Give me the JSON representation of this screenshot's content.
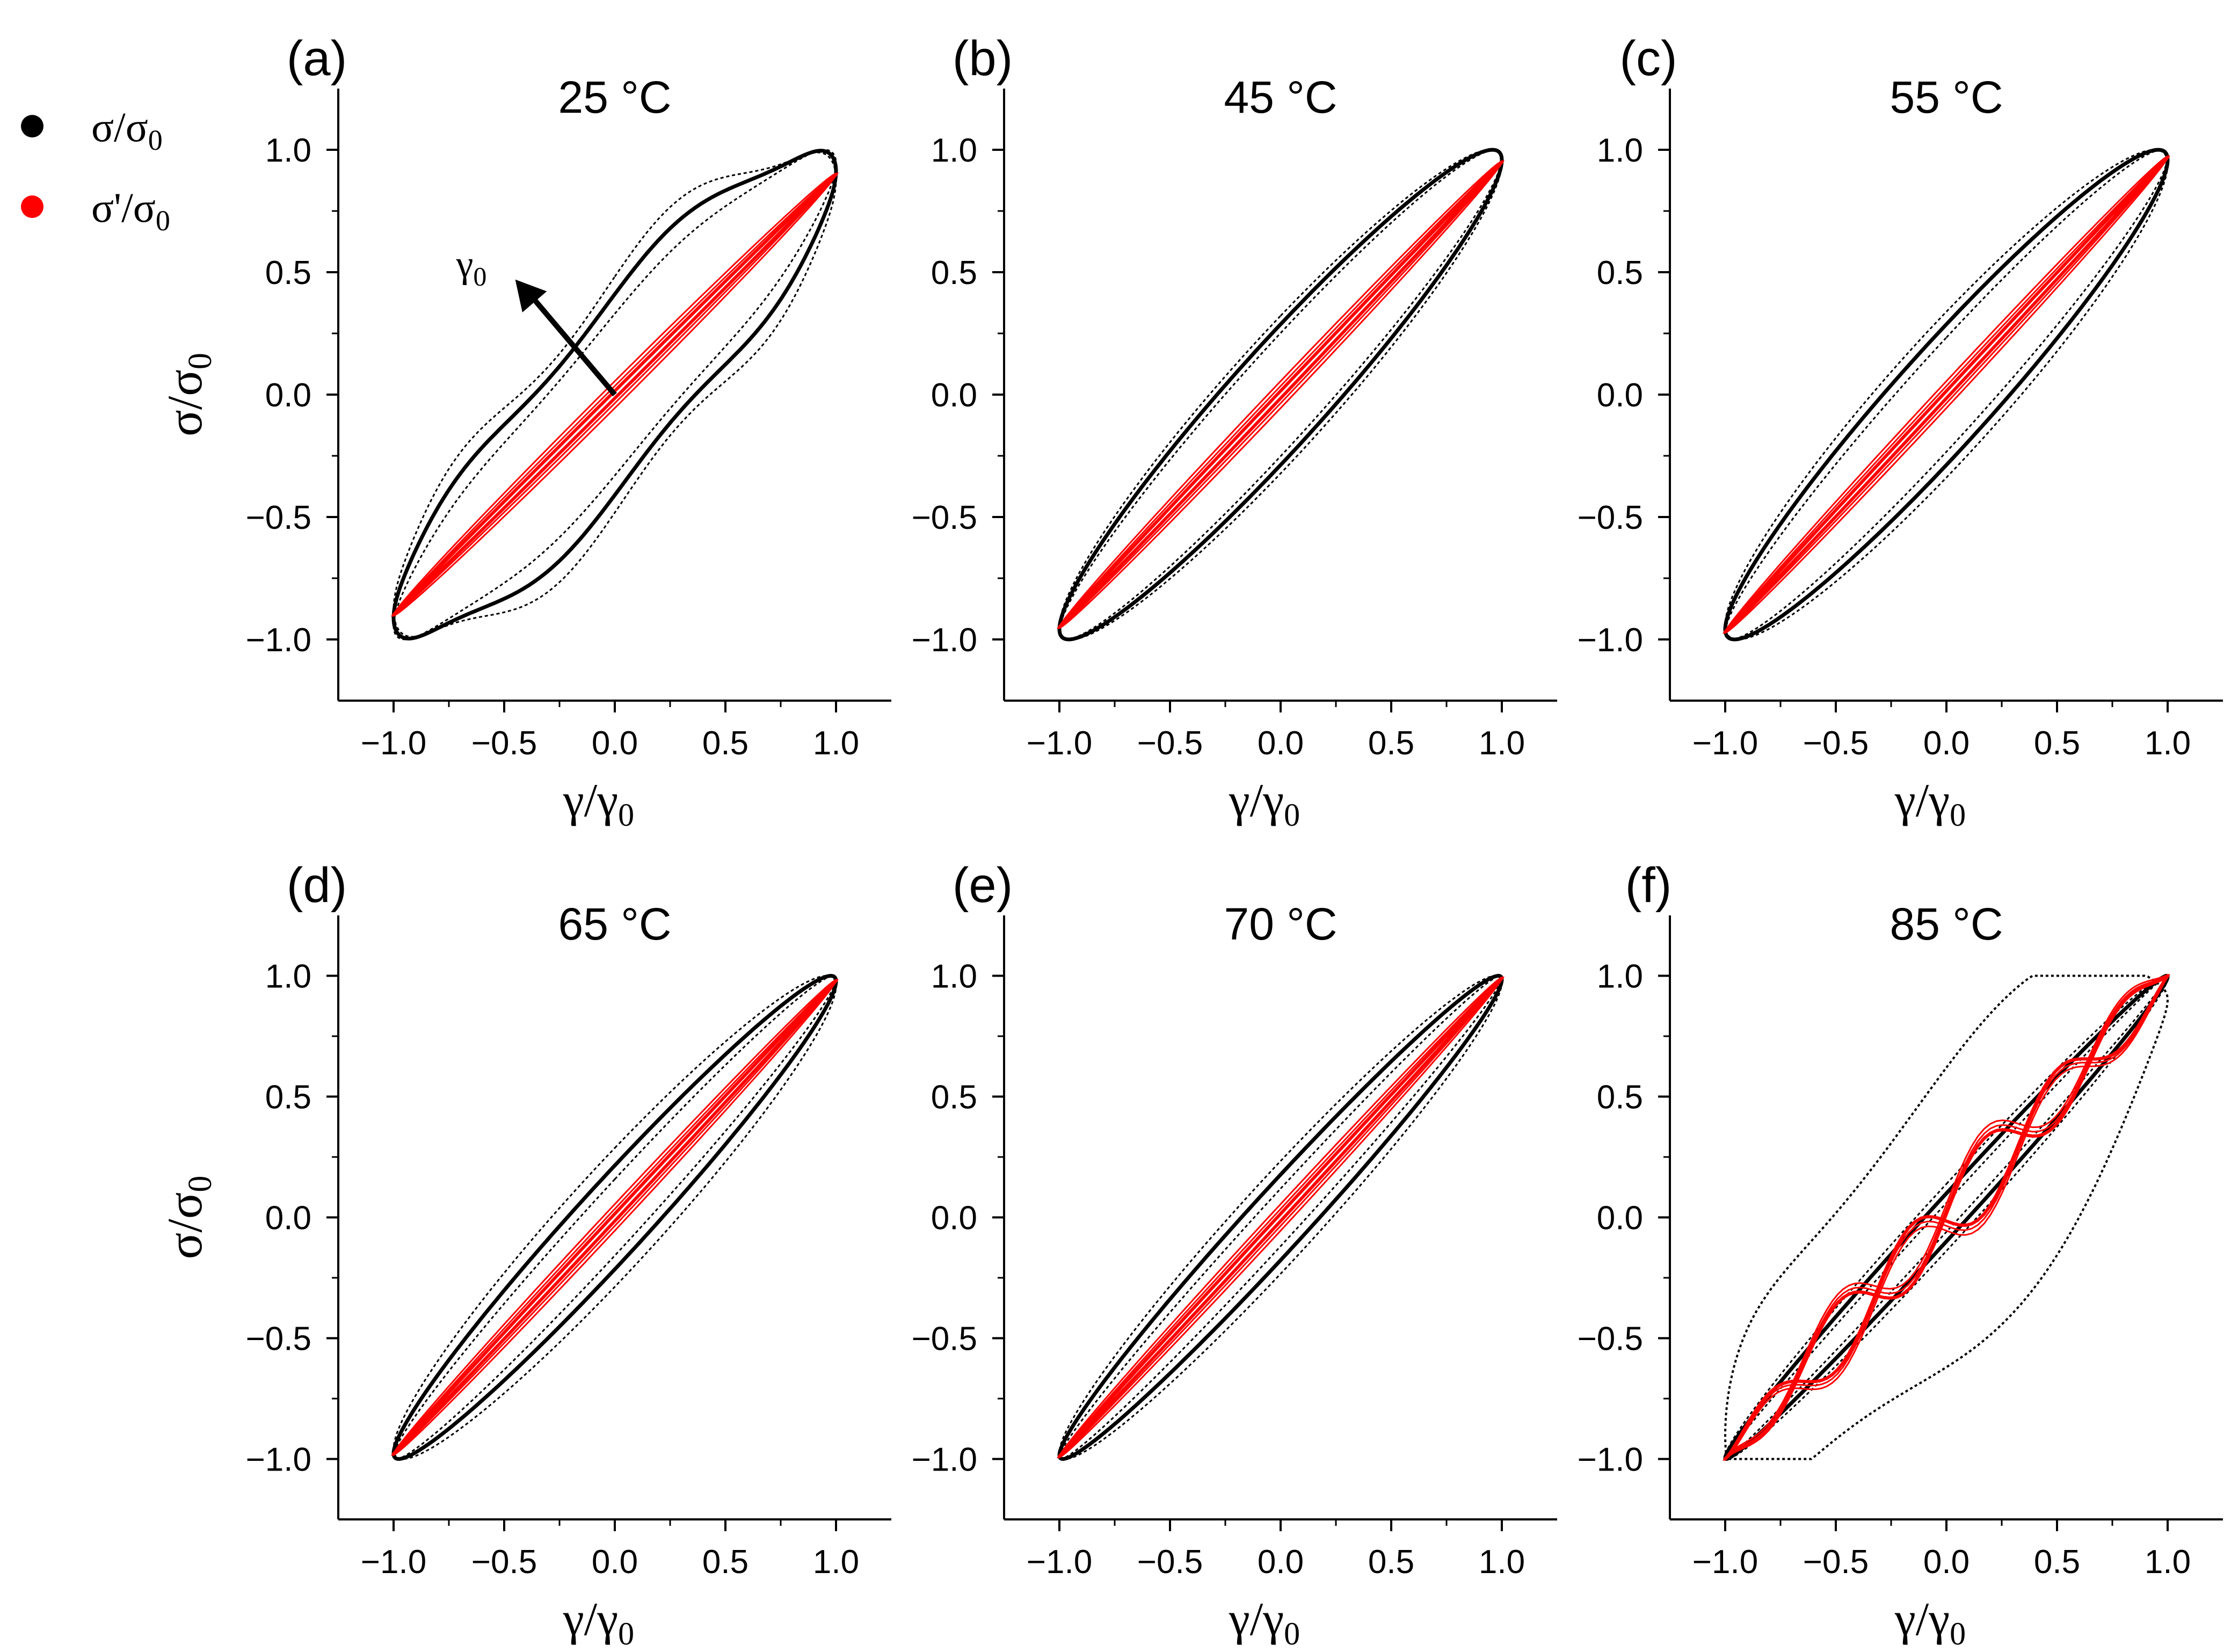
{
  "legend": {
    "items": [
      {
        "symbol_color": "#000000",
        "label_main": "σ/σ",
        "label_sub": "0"
      },
      {
        "symbol_color": "#ff0000",
        "label_main": "σ'/σ",
        "label_sub": "0"
      }
    ],
    "placement": "top-left"
  },
  "colors": {
    "total_stress": "#000000",
    "elastic_stress": "#ff0000"
  },
  "axis_labels": {
    "x_main": "γ/γ",
    "x_sub": "0",
    "y_main": "σ/σ",
    "y_sub": "0"
  },
  "annotation": {
    "arrow_label_main": "γ",
    "arrow_label_sub": "0",
    "arrow_from": [
      0.0,
      0.0
    ],
    "arrow_to": [
      -0.45,
      0.47
    ]
  },
  "chart_data": [
    {
      "type": "line",
      "panel": "(a)",
      "title": "25 °C",
      "xlabel": "γ/γ0",
      "ylabel": "σ/σ0",
      "xlim": [
        -1.25,
        1.25
      ],
      "ylim": [
        -1.25,
        1.25
      ],
      "xticks": [
        "−1.0",
        "−0.5",
        "0.0",
        "0.5",
        "1.0"
      ],
      "yticks": [
        "−1.0",
        "−0.5",
        "0.0",
        "0.5",
        "1.0"
      ],
      "legend": [
        "σ/σ0",
        "σ'/σ0"
      ],
      "series": [
        {
          "name": "σ/σ0",
          "loop_widths": [
            0.35,
            0.45,
            0.55
          ]
        },
        {
          "name": "σ'/σ0",
          "slope": 0.9
        }
      ]
    },
    {
      "type": "line",
      "panel": "(b)",
      "title": "45 °C",
      "xlabel": "γ/γ0",
      "ylabel": "σ/σ0",
      "xlim": [
        -1.25,
        1.25
      ],
      "ylim": [
        -1.25,
        1.25
      ],
      "xticks": [
        "−1.0",
        "−0.5",
        "0.0",
        "0.5",
        "1.0"
      ],
      "yticks": [
        "−1.0",
        "−0.5",
        "0.0",
        "0.5",
        "1.0"
      ],
      "series": [
        {
          "name": "σ/σ0",
          "loop_widths": [
            0.26,
            0.3,
            0.34
          ]
        },
        {
          "name": "σ'/σ0",
          "slope": 0.95
        }
      ]
    },
    {
      "type": "line",
      "panel": "(c)",
      "title": "55 °C",
      "xlabel": "γ/γ0",
      "ylabel": "σ/σ0",
      "xlim": [
        -1.25,
        1.25
      ],
      "ylim": [
        -1.25,
        1.25
      ],
      "xticks": [
        "−1.0",
        "−0.5",
        "0.0",
        "0.5",
        "1.0"
      ],
      "yticks": [
        "−1.0",
        "−0.5",
        "0.0",
        "0.5",
        "1.0"
      ],
      "series": [
        {
          "name": "σ/σ0",
          "loop_widths": [
            0.24,
            0.3,
            0.36
          ]
        },
        {
          "name": "σ'/σ0",
          "slope": 0.97
        }
      ]
    },
    {
      "type": "line",
      "panel": "(d)",
      "title": "65 °C",
      "xlabel": "γ/γ0",
      "ylabel": "σ/σ0",
      "xlim": [
        -1.25,
        1.25
      ],
      "ylim": [
        -1.25,
        1.25
      ],
      "xticks": [
        "−1.0",
        "−0.5",
        "0.0",
        "0.5",
        "1.0"
      ],
      "yticks": [
        "−1.0",
        "−0.5",
        "0.0",
        "0.5",
        "1.0"
      ],
      "series": [
        {
          "name": "σ/σ0",
          "loop_widths": [
            0.16,
            0.22,
            0.3
          ]
        },
        {
          "name": "σ'/σ0",
          "slope": 0.98
        }
      ]
    },
    {
      "type": "line",
      "panel": "(e)",
      "title": "70 °C",
      "xlabel": "γ/γ0",
      "ylabel": "σ/σ0",
      "xlim": [
        -1.25,
        1.25
      ],
      "ylim": [
        -1.25,
        1.25
      ],
      "xticks": [
        "−1.0",
        "−0.5",
        "0.0",
        "0.5",
        "1.0"
      ],
      "yticks": [
        "−1.0",
        "−0.5",
        "0.0",
        "0.5",
        "1.0"
      ],
      "series": [
        {
          "name": "σ/σ0",
          "loop_widths": [
            0.12,
            0.18,
            0.24
          ]
        },
        {
          "name": "σ'/σ0",
          "slope": 0.99
        }
      ]
    },
    {
      "type": "line",
      "panel": "(f)",
      "title": "85 °C",
      "xlabel": "γ/γ0",
      "ylabel": "σ/σ0",
      "xlim": [
        -1.25,
        1.25
      ],
      "ylim": [
        -1.25,
        1.25
      ],
      "xticks": [
        "−1.0",
        "−0.5",
        "0.0",
        "0.5",
        "1.0"
      ],
      "yticks": [
        "−1.0",
        "−0.5",
        "0.0",
        "0.5",
        "1.0"
      ],
      "series": [
        {
          "name": "σ/σ0",
          "loop_widths": [
            0.06,
            0.1,
            0.14
          ],
          "outer_loop": true
        },
        {
          "name": "σ'/σ0",
          "slope": 1.0,
          "wavy": true
        }
      ]
    }
  ]
}
